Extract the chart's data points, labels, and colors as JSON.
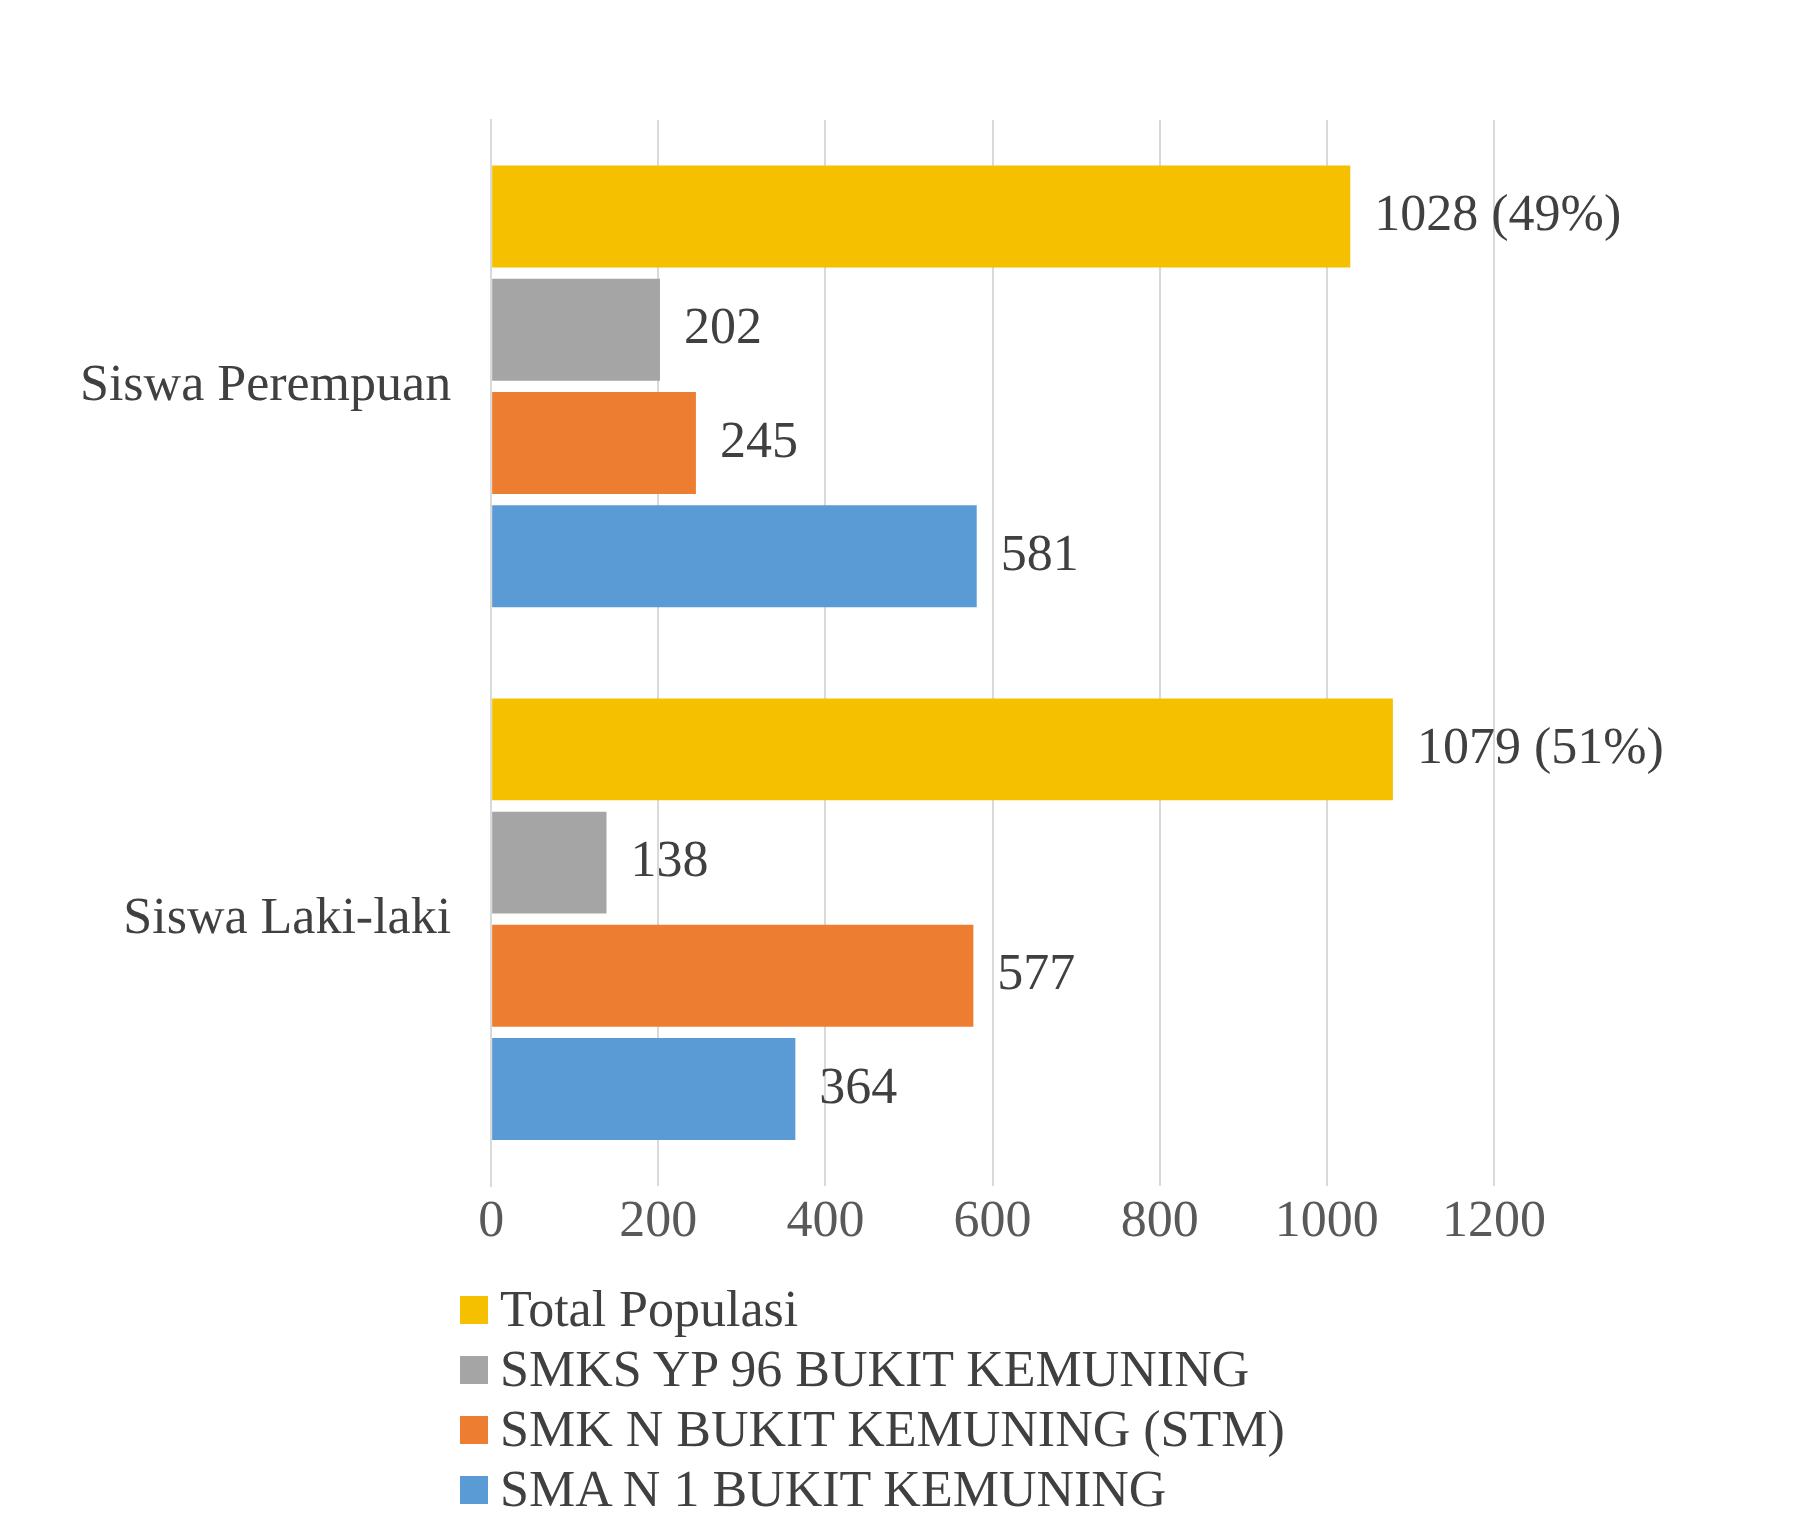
{
  "chart_data": {
    "type": "bar",
    "orientation": "horizontal",
    "categories": [
      "Siswa Perempuan",
      "Siswa Laki-laki"
    ],
    "series": [
      {
        "name": "Total Populasi",
        "color": "#f5c000",
        "values": [
          1028,
          1079
        ],
        "value_labels": [
          "1028 (49%)",
          "1079 (51%)"
        ]
      },
      {
        "name": "SMKS YP 96 BUKIT KEMUNING",
        "color": "#a5a5a5",
        "values": [
          202,
          138
        ],
        "value_labels": [
          "202",
          "138"
        ]
      },
      {
        "name": "SMK N BUKIT KEMUNING (STM)",
        "color": "#ed7d31",
        "values": [
          245,
          577
        ],
        "value_labels": [
          "245",
          "577"
        ]
      },
      {
        "name": "SMA N 1 BUKIT KEMUNING",
        "color": "#5b9bd5",
        "values": [
          581,
          364
        ],
        "value_labels": [
          "581",
          "364"
        ]
      }
    ],
    "xlim": [
      0,
      1200
    ],
    "xticks": [
      0,
      200,
      400,
      600,
      800,
      1000,
      1200
    ],
    "grid": "x",
    "legend": "bottom"
  }
}
